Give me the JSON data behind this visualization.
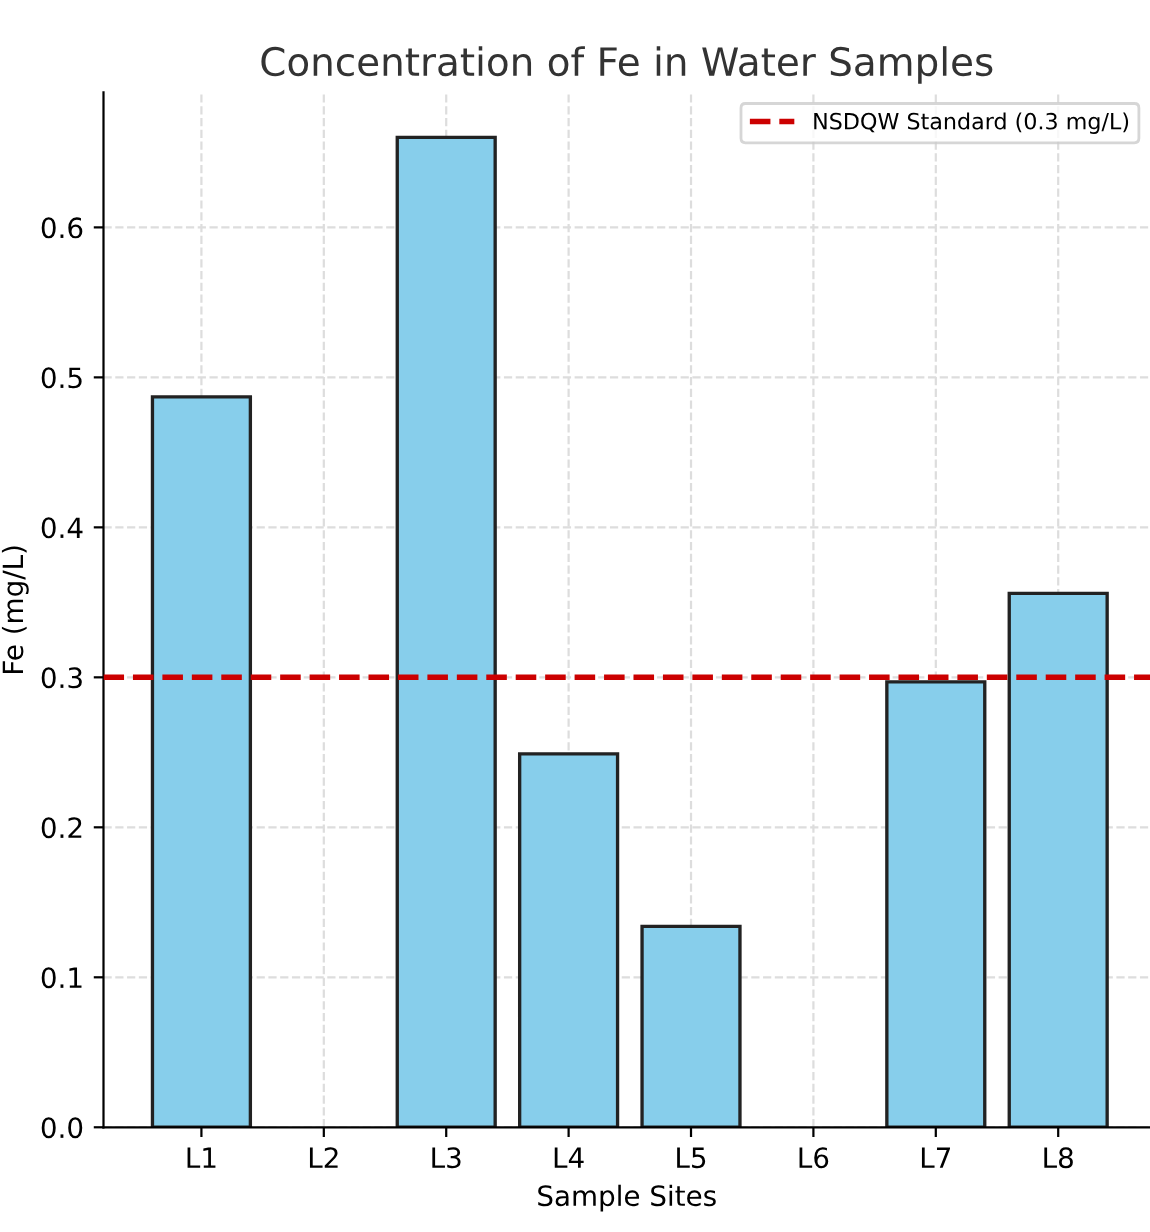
{
  "chart_data": {
    "type": "bar",
    "title": "Concentration of Fe in Water Samples",
    "xlabel": "Sample Sites",
    "ylabel": "Fe (mg/L)",
    "categories": [
      "L1",
      "L2",
      "L3",
      "L4",
      "L5",
      "L6",
      "L7",
      "L8"
    ],
    "series": [
      {
        "color": "#87ceeb",
        "values": [
          0.487,
          null,
          0.66,
          0.249,
          0.134,
          null,
          0.297,
          0.356
        ]
      }
    ],
    "ylim": [
      0,
      0.69
    ],
    "yticks": [
      {
        "value": 0,
        "label": "0.0"
      },
      0.1,
      0.2,
      0.3,
      0.4,
      0.5,
      0.6
    ],
    "ref_lines": [
      {
        "axis": "y",
        "value": 0.3,
        "label": "NSDQW Standard (0.3 mg/L)",
        "color": "#cc0000",
        "line_style": "dashed"
      }
    ],
    "grid": true,
    "legend": "top right"
  }
}
